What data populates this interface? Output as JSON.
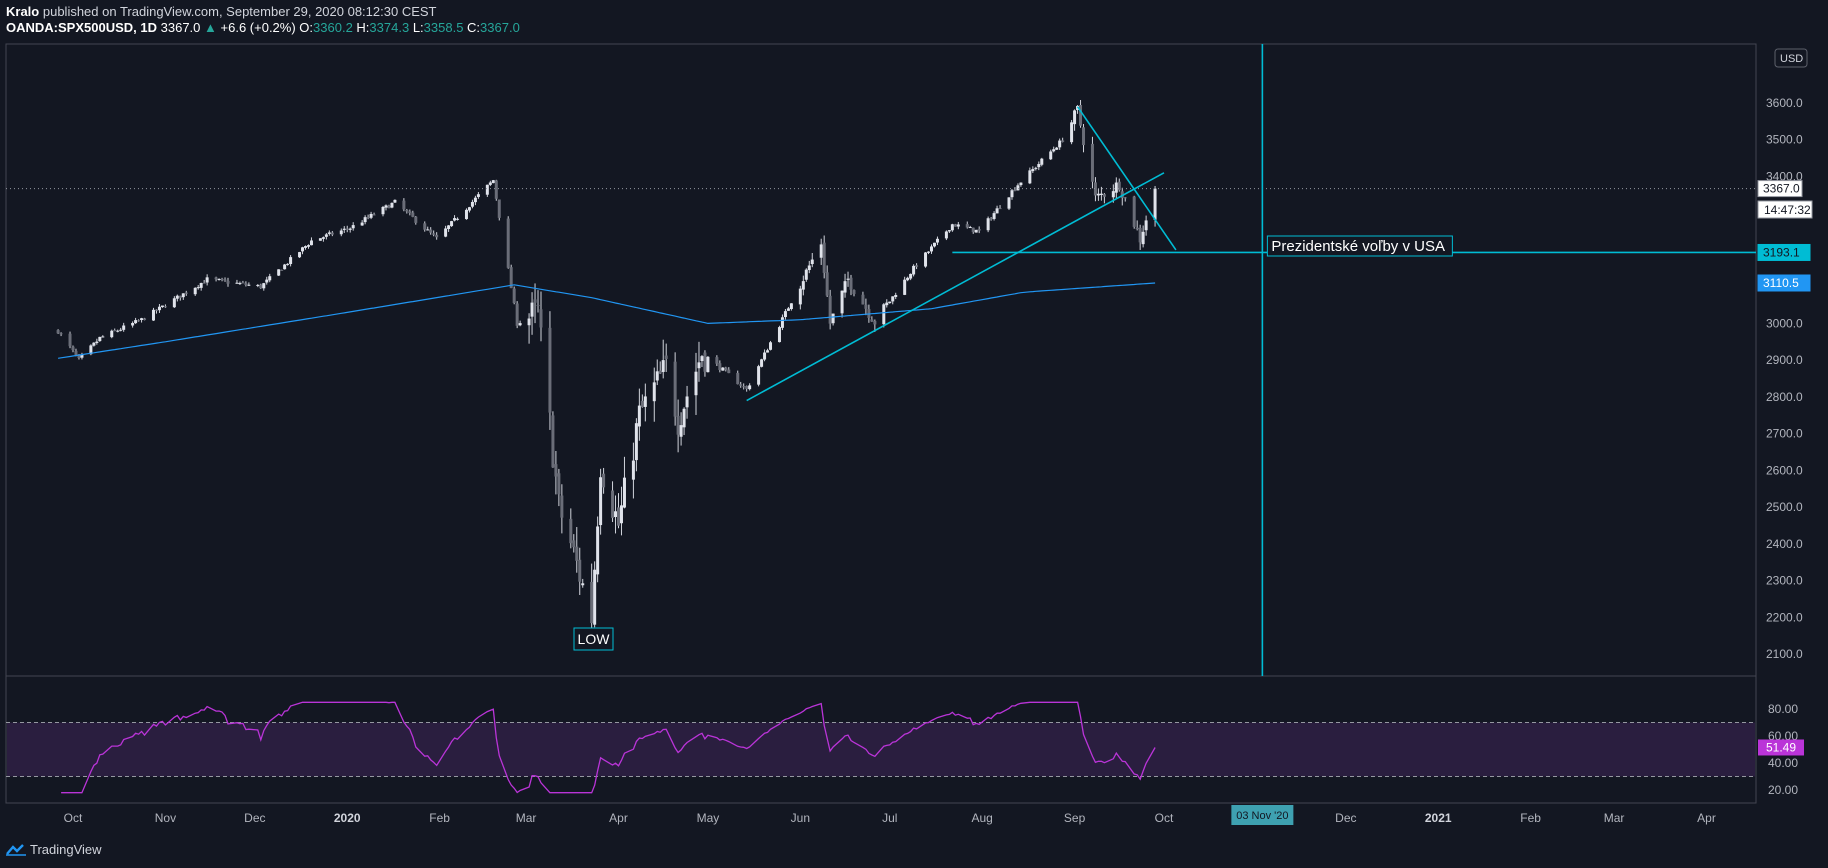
{
  "header": {
    "author": "Kralo",
    "published": "published on TradingView.com, September 29, 2020 08:12:30 CEST",
    "symbol": "OANDA:SPX500USD, 1D",
    "last": "3367.0",
    "change": "+6.6 (+0.2%)",
    "open_label": "O:",
    "open": "3360.2",
    "high_label": "H:",
    "high": "3374.3",
    "low_label": "L:",
    "low": "3358.5",
    "close_label": "C:",
    "close": "3367.0"
  },
  "footer": {
    "brand": "TradingView"
  },
  "colors": {
    "background": "#131722",
    "candle": "#d1d4dc",
    "drawing": "#00bcd4",
    "ma": "#2196f3",
    "rsi": "#ba34d8",
    "rsi_band": "#2a1e3f",
    "grid_text": "#b2b5be"
  },
  "chart_data": {
    "type": "candlestick",
    "currency_label": "USD",
    "price_axis": {
      "range": [
        2030,
        3680
      ],
      "ticks": [
        "2100.0",
        "2200.0",
        "2300.0",
        "2400.0",
        "2500.0",
        "2600.0",
        "2700.0",
        "2800.0",
        "2900.0",
        "3000.0",
        "3100.0",
        "3200.0",
        "3300.0",
        "3400.0",
        "3500.0",
        "3600.0"
      ]
    },
    "time_axis": {
      "labels": [
        "Oct",
        "Nov",
        "Dec",
        "2020",
        "Feb",
        "Mar",
        "Apr",
        "May",
        "Jun",
        "Jul",
        "Aug",
        "Sep",
        "Oct",
        "Dec",
        "2021",
        "Feb",
        "Mar",
        "Apr"
      ],
      "highlight": "03 Nov '20"
    },
    "price_series": {
      "name": "OANDA:SPX500USD",
      "anchors": [
        [
          "2019-09-26",
          2980
        ],
        [
          "2019-10-03",
          2900
        ],
        [
          "2019-10-10",
          2960
        ],
        [
          "2019-10-24",
          3010
        ],
        [
          "2019-11-15",
          3120
        ],
        [
          "2019-12-03",
          3100
        ],
        [
          "2019-12-20",
          3225
        ],
        [
          "2020-01-02",
          3260
        ],
        [
          "2020-01-17",
          3330
        ],
        [
          "2020-01-31",
          3230
        ],
        [
          "2020-02-19",
          3390
        ],
        [
          "2020-02-27",
          3000
        ],
        [
          "2020-03-05",
          3030
        ],
        [
          "2020-03-12",
          2500
        ],
        [
          "2020-03-16",
          2400
        ],
        [
          "2020-03-23",
          2200
        ],
        [
          "2020-03-26",
          2620
        ],
        [
          "2020-04-01",
          2450
        ],
        [
          "2020-04-08",
          2750
        ],
        [
          "2020-04-17",
          2880
        ],
        [
          "2020-04-21",
          2740
        ],
        [
          "2020-04-29",
          2920
        ],
        [
          "2020-05-14",
          2820
        ],
        [
          "2020-06-08",
          3220
        ],
        [
          "2020-06-11",
          3000
        ],
        [
          "2020-06-17",
          3120
        ],
        [
          "2020-06-26",
          3005
        ],
        [
          "2020-07-09",
          3150
        ],
        [
          "2020-07-22",
          3270
        ],
        [
          "2020-07-31",
          3250
        ],
        [
          "2020-08-12",
          3370
        ],
        [
          "2020-08-28",
          3500
        ],
        [
          "2020-09-02",
          3580
        ],
        [
          "2020-09-08",
          3340
        ],
        [
          "2020-09-16",
          3380
        ],
        [
          "2020-09-23",
          3230
        ],
        [
          "2020-09-28",
          3367
        ]
      ],
      "last": 3367.0,
      "last_label": "3367.0",
      "countdown": "14:47:32"
    },
    "moving_average": {
      "name": "MA",
      "anchors": [
        [
          "2019-09-26",
          2905
        ],
        [
          "2019-11-01",
          2950
        ],
        [
          "2020-01-01",
          3030
        ],
        [
          "2020-02-26",
          3105
        ],
        [
          "2020-03-23",
          3070
        ],
        [
          "2020-05-01",
          3000
        ],
        [
          "2020-06-01",
          3010
        ],
        [
          "2020-07-15",
          3040
        ],
        [
          "2020-08-15",
          3085
        ],
        [
          "2020-09-28",
          3110
        ]
      ],
      "last_label": "3110.5"
    },
    "annotations": {
      "low_label": "LOW",
      "horizontal_level": 3193.1,
      "horizontal_label": "3193.1",
      "vline_date": "2020-11-03",
      "vline_text": "Prezidentské voľby v USA",
      "uptrend": [
        [
          "2020-05-14",
          2790
        ],
        [
          "2020-10-01",
          3410
        ]
      ],
      "downtrend": [
        [
          "2020-09-02",
          3590
        ],
        [
          "2020-10-05",
          3200
        ]
      ],
      "level_start": "2020-07-22"
    },
    "rsi": {
      "name": "RSI",
      "levels": [
        70,
        30
      ],
      "ticks": [
        "20.00",
        "40.00",
        "60.00",
        "80.00"
      ],
      "last": 51.49,
      "last_label": "51.49"
    }
  }
}
